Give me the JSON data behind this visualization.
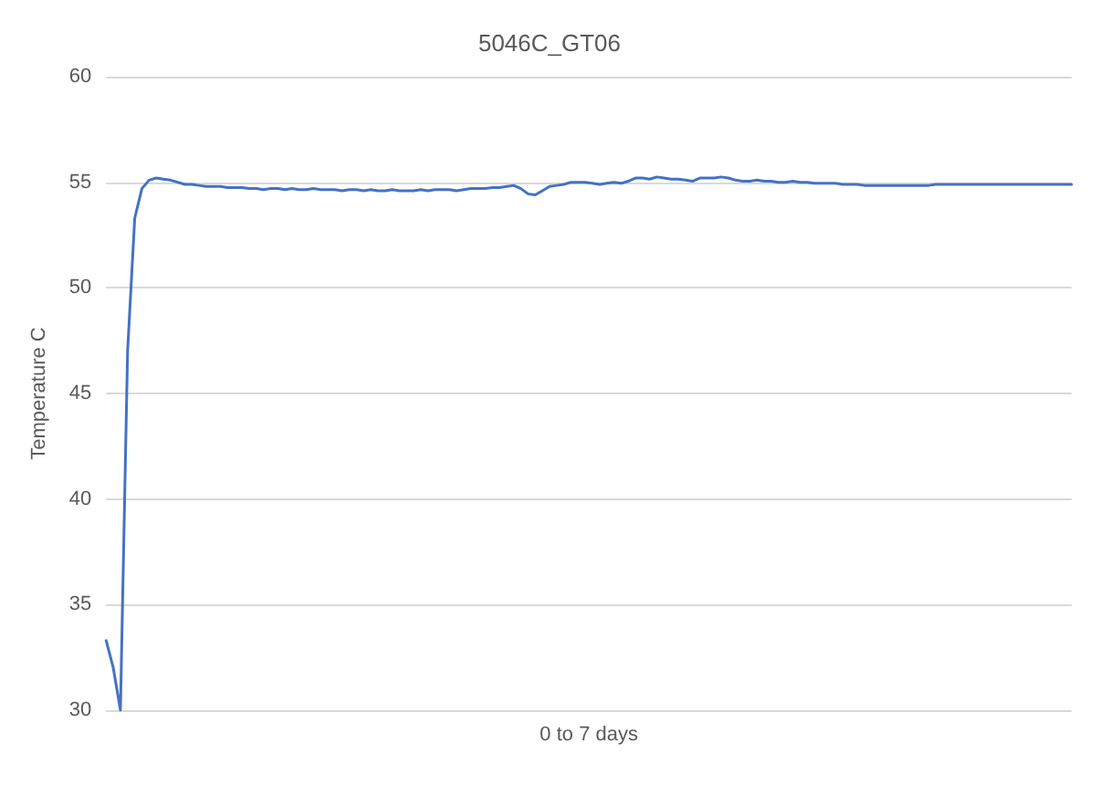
{
  "chart_data": {
    "type": "line",
    "title": "5046C_GT06",
    "xlabel": "0 to 7 days",
    "ylabel": "Temperature C",
    "categories": [
      null,
      null,
      null,
      null,
      null,
      null,
      null,
      null,
      null,
      null,
      null,
      null,
      null,
      null,
      null,
      null,
      null,
      null,
      null,
      null,
      null,
      null,
      null,
      null,
      null,
      null,
      null,
      null,
      null,
      null,
      null,
      null,
      null,
      null,
      null,
      null,
      null,
      null,
      null,
      null,
      null,
      null,
      null,
      null,
      null,
      null,
      null,
      null,
      null,
      null,
      null,
      null,
      null,
      null,
      null,
      null,
      null,
      null,
      null,
      null,
      null,
      null,
      null,
      null,
      null,
      null,
      null,
      null,
      null,
      null,
      null,
      null,
      null,
      null,
      null,
      null,
      null,
      null,
      null,
      null,
      null,
      null,
      null,
      null,
      null,
      null,
      null,
      null,
      null,
      null,
      null,
      null,
      null,
      null,
      null,
      null,
      null,
      null,
      null,
      null,
      null,
      null,
      null,
      null,
      null,
      null,
      null,
      null,
      null,
      null,
      null,
      null,
      null,
      null,
      null,
      null,
      null,
      null,
      null,
      null,
      null,
      null,
      null,
      null,
      null,
      null,
      null,
      null,
      null,
      null,
      null,
      null,
      null,
      null,
      null,
      null
    ],
    "series": [
      {
        "color": "#4472c4",
        "values": [
          33.3,
          32.0,
          30,
          47,
          53.3,
          54.7,
          55.1,
          55.2,
          55.15,
          55.1,
          55.0,
          54.9,
          54.9,
          54.85,
          54.8,
          54.8,
          54.8,
          54.75,
          54.75,
          54.75,
          54.7,
          54.7,
          54.65,
          54.7,
          54.7,
          54.65,
          54.7,
          54.65,
          54.65,
          54.7,
          54.65,
          54.65,
          54.65,
          54.6,
          54.65,
          54.65,
          54.6,
          54.65,
          54.6,
          54.6,
          54.65,
          54.6,
          54.6,
          54.6,
          54.65,
          54.6,
          54.65,
          54.65,
          54.65,
          54.6,
          54.65,
          54.7,
          54.7,
          54.7,
          54.75,
          54.75,
          54.8,
          54.85,
          54.7,
          54.45,
          54.4,
          54.6,
          54.8,
          54.85,
          54.9,
          55.0,
          55.0,
          55.0,
          54.95,
          54.9,
          54.95,
          55.0,
          54.95,
          55.05,
          55.2,
          55.2,
          55.15,
          55.25,
          55.2,
          55.15,
          55.15,
          55.1,
          55.05,
          55.2,
          55.2,
          55.2,
          55.25,
          55.2,
          55.1,
          55.05,
          55.05,
          55.1,
          55.05,
          55.05,
          55.0,
          55.0,
          55.05,
          55.0,
          55.0,
          54.95,
          54.95,
          54.95,
          54.95,
          54.9,
          54.9,
          54.9,
          54.85,
          54.85,
          54.85,
          54.85,
          54.85,
          54.85,
          54.85,
          54.85,
          54.85,
          54.85,
          54.9,
          54.9,
          54.9,
          54.9,
          54.9,
          54.9,
          54.9,
          54.9,
          54.9,
          54.9,
          54.9,
          54.9,
          54.9,
          54.9,
          54.9,
          54.9,
          54.9,
          54.9,
          54.9,
          54.9
        ]
      }
    ],
    "ylim": [
      30,
      60
    ],
    "yticks": [
      30,
      35,
      40,
      45,
      50,
      55,
      60
    ],
    "grid": "y",
    "line_style": "solid",
    "tick_labels": "y"
  }
}
